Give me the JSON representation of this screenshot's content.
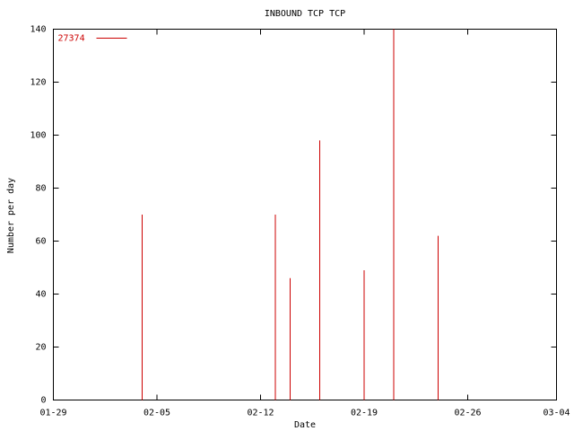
{
  "chart_data": {
    "type": "impulse",
    "title": "INBOUND TCP TCP",
    "x_label": "Date",
    "y_label": "Number per day",
    "x": [
      "02-04",
      "02-13",
      "02-14",
      "02-16",
      "02-19",
      "02-21",
      "02-24"
    ],
    "series": [
      {
        "name": "27374",
        "color": "#cc0000",
        "values": [
          70,
          70,
          46,
          98,
          49,
          140,
          62
        ]
      }
    ],
    "xlim": [
      "01-29",
      "03-04"
    ],
    "xticks": [
      "01-29",
      "02-05",
      "02-12",
      "02-19",
      "02-26",
      "03-04"
    ],
    "ylim": [
      0,
      140
    ],
    "yticks": [
      0,
      20,
      40,
      60,
      80,
      100,
      120,
      140
    ],
    "legend": "top-left"
  }
}
